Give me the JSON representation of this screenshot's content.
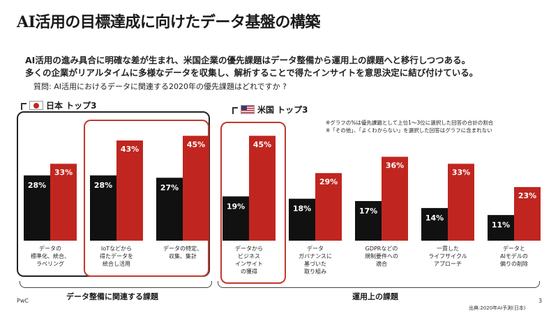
{
  "page": {
    "title": "AI活用の目標達成に向けたデータ基盤の構築",
    "subtitle_line1": "AI活用の進み具合に明確な差が生まれ、米国企業の優先課題はデータ整備から運用上の課題へと移行しつつある。",
    "subtitle_line2": "多くの企業がリアルタイムに多様なデータを収集し、解析することで得たインサイトを意思決定に結び付けている。",
    "question": "質問:  AI活用におけるデータに関連する2020年の優先課題はどれですか ?",
    "group_japan": "日本 トップ3",
    "group_us": "米国 トップ3",
    "note_line1": "※グラフの%は優先課題として上位1～3位に選択した回答の合計の割合",
    "note_line2": "※「その他」、「よくわからない」を選択した回答はグラフに含まれない",
    "brace_left_label": "データ整備に関連する課題",
    "brace_right_label": "運用上の課題",
    "footer_left": "PwC",
    "page_number": "3",
    "source": "出典:2020年AI予測(日本)"
  },
  "colors": {
    "japan": "#111111",
    "us": "#c0261f",
    "japan_box": "#222222",
    "us_box": "#c0392b"
  },
  "chart_data": {
    "type": "bar",
    "categories": [
      [
        "データの",
        "標準化、統合、",
        "ラベリング"
      ],
      [
        "IoTなどから",
        "得たデータを",
        "統合し活用"
      ],
      [
        "データの特定、",
        "収集、集計"
      ],
      [
        "データから",
        "ビジネス",
        "インサイト",
        "の獲得"
      ],
      [
        "データ",
        "ガバナンスに",
        "基づいた",
        "取り組み"
      ],
      [
        "GDPRなどの",
        "規制要件への",
        "適合"
      ],
      [
        "一貫した",
        "ライフサイクル",
        "アプローチ"
      ],
      [
        "データと",
        "AIモデルの",
        "偏りの削除"
      ]
    ],
    "series": [
      {
        "name": "日本",
        "values": [
          28,
          28,
          27,
          19,
          18,
          17,
          14,
          11
        ]
      },
      {
        "name": "米国",
        "values": [
          33,
          43,
          45,
          45,
          29,
          36,
          33,
          23
        ]
      }
    ],
    "value_labels": [
      [
        "28%",
        "28%",
        "27%",
        "19%",
        "18%",
        "17%",
        "14%",
        "11%"
      ],
      [
        "33%",
        "43%",
        "45%",
        "45%",
        "29%",
        "36%",
        "33%",
        "23%"
      ]
    ],
    "ylim": [
      0,
      50
    ],
    "grid": false
  }
}
